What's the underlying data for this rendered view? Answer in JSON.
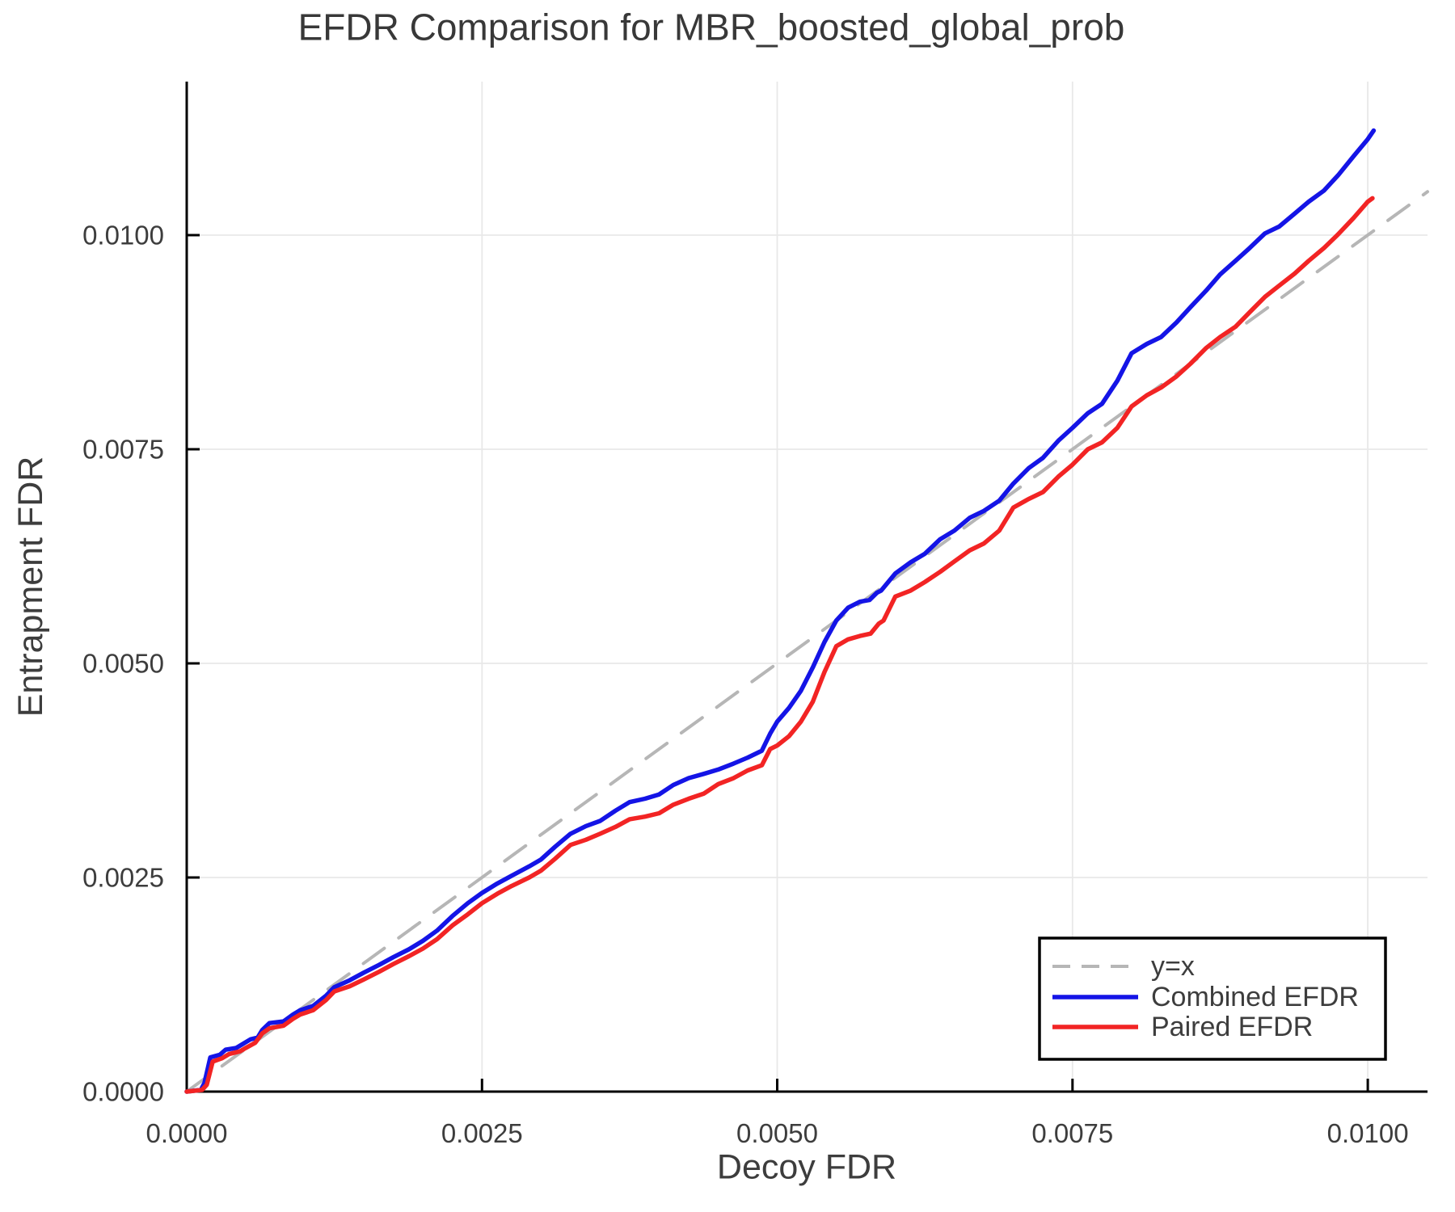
{
  "title": "EFDR Comparison for MBR_boosted_global_prob",
  "axes": {
    "xlabel": "Decoy FDR",
    "ylabel": "Entrapment FDR",
    "x_tick_labels": [
      "0.0000",
      "0.0025",
      "0.0050",
      "0.0075",
      "0.0100"
    ],
    "x_tick_values": [
      0.0,
      0.0025,
      0.005,
      0.0075,
      0.01
    ],
    "y_tick_labels": [
      "0.0000",
      "0.0025",
      "0.0050",
      "0.0075",
      "0.0100"
    ],
    "y_tick_values": [
      0.0,
      0.0025,
      0.005,
      0.0075,
      0.01
    ]
  },
  "legend": {
    "entries": [
      {
        "label": "y=x",
        "color": "#b6b6b6",
        "dash": true
      },
      {
        "label": "Combined EFDR",
        "color": "#1414e6",
        "dash": false
      },
      {
        "label": "Paired EFDR",
        "color": "#f22424",
        "dash": false
      }
    ]
  },
  "colors": {
    "grid": "#e8e8e8",
    "spine": "#000000",
    "text": "#3d3d3d",
    "background": "#ffffff",
    "yx_line": "#b6b6b6",
    "combined": "#1414e6",
    "paired": "#f22424"
  },
  "chart_data": {
    "type": "line",
    "title": "EFDR Comparison for MBR_boosted_global_prob",
    "xlabel": "Decoy FDR",
    "ylabel": "Entrapment FDR",
    "xlim": [
      0,
      0.010506
    ],
    "ylim": [
      0,
      0.011792
    ],
    "grid": true,
    "legend_position": "lower right",
    "series": [
      {
        "id": "yx",
        "name": "y=x",
        "color": "#b6b6b6",
        "style": "dashed",
        "points": [
          [
            0,
            0
          ],
          [
            0.010506,
            0.010506
          ]
        ]
      },
      {
        "id": "combined",
        "name": "Combined EFDR",
        "color": "#1414e6",
        "style": "solid",
        "points": [
          [
            0,
            0
          ],
          [
            0.00012,
            2e-05
          ],
          [
            0.00015,
            0.0001
          ],
          [
            0.0002,
            0.0004
          ],
          [
            0.00028,
            0.00043
          ],
          [
            0.00033,
            0.00049
          ],
          [
            0.00042,
            0.00051
          ],
          [
            0.00048,
            0.00056
          ],
          [
            0.00054,
            0.00061
          ],
          [
            0.0006,
            0.00063
          ],
          [
            0.00064,
            0.00072
          ],
          [
            0.0007,
            0.0008
          ],
          [
            0.00082,
            0.00082
          ],
          [
            0.0009,
            0.0009
          ],
          [
            0.00096,
            0.00095
          ],
          [
            0.00107,
            0.001
          ],
          [
            0.00118,
            0.00112
          ],
          [
            0.00125,
            0.00122
          ],
          [
            0.00138,
            0.0013
          ],
          [
            0.0015,
            0.00139
          ],
          [
            0.00163,
            0.00148
          ],
          [
            0.00175,
            0.00157
          ],
          [
            0.00188,
            0.00166
          ],
          [
            0.002,
            0.00176
          ],
          [
            0.00212,
            0.00188
          ],
          [
            0.00225,
            0.00205
          ],
          [
            0.00238,
            0.0022
          ],
          [
            0.0025,
            0.00232
          ],
          [
            0.00263,
            0.00243
          ],
          [
            0.00275,
            0.00252
          ],
          [
            0.0029,
            0.00263
          ],
          [
            0.003,
            0.00271
          ],
          [
            0.00312,
            0.00286
          ],
          [
            0.00325,
            0.00301
          ],
          [
            0.00338,
            0.0031
          ],
          [
            0.0035,
            0.00316
          ],
          [
            0.00363,
            0.00328
          ],
          [
            0.00375,
            0.00338
          ],
          [
            0.00388,
            0.00342
          ],
          [
            0.004,
            0.00347
          ],
          [
            0.00412,
            0.00358
          ],
          [
            0.00425,
            0.00366
          ],
          [
            0.00438,
            0.00371
          ],
          [
            0.0045,
            0.00376
          ],
          [
            0.00463,
            0.00383
          ],
          [
            0.00475,
            0.0039
          ],
          [
            0.00487,
            0.00398
          ],
          [
            0.00494,
            0.00418
          ],
          [
            0.005,
            0.00432
          ],
          [
            0.0051,
            0.00448
          ],
          [
            0.0052,
            0.00468
          ],
          [
            0.0053,
            0.00495
          ],
          [
            0.0054,
            0.00525
          ],
          [
            0.0055,
            0.0055
          ],
          [
            0.0056,
            0.00565
          ],
          [
            0.0057,
            0.00572
          ],
          [
            0.00588,
            0.00585
          ],
          [
            0.006,
            0.00605
          ],
          [
            0.00613,
            0.00618
          ],
          [
            0.00625,
            0.00628
          ],
          [
            0.00638,
            0.00645
          ],
          [
            0.0065,
            0.00655
          ],
          [
            0.00663,
            0.0067
          ],
          [
            0.00675,
            0.00678
          ],
          [
            0.00688,
            0.0069
          ],
          [
            0.007,
            0.0071
          ],
          [
            0.00713,
            0.00728
          ],
          [
            0.00725,
            0.0074
          ],
          [
            0.00738,
            0.0076
          ],
          [
            0.0075,
            0.00775
          ],
          [
            0.00763,
            0.00792
          ],
          [
            0.00775,
            0.00803
          ],
          [
            0.00788,
            0.0083
          ],
          [
            0.008,
            0.00862
          ],
          [
            0.00813,
            0.00873
          ],
          [
            0.00825,
            0.00881
          ],
          [
            0.00838,
            0.00898
          ],
          [
            0.0085,
            0.00916
          ],
          [
            0.00863,
            0.00935
          ],
          [
            0.00875,
            0.00954
          ],
          [
            0.00888,
            0.0097
          ],
          [
            0.009,
            0.00985
          ],
          [
            0.00913,
            0.01002
          ],
          [
            0.00925,
            0.0101
          ],
          [
            0.00938,
            0.01025
          ],
          [
            0.0095,
            0.01039
          ],
          [
            0.00963,
            0.01052
          ],
          [
            0.00975,
            0.0107
          ],
          [
            0.00988,
            0.01092
          ],
          [
            0.01,
            0.01112
          ],
          [
            0.01005,
            0.01122
          ]
        ]
      },
      {
        "id": "paired",
        "name": "Paired EFDR",
        "color": "#f22424",
        "style": "solid",
        "points": [
          [
            0,
            0
          ],
          [
            0.00013,
            2e-05
          ],
          [
            0.00017,
            8e-05
          ],
          [
            0.00022,
            0.00035
          ],
          [
            0.0003,
            0.00039
          ],
          [
            0.00036,
            0.00044
          ],
          [
            0.00045,
            0.00047
          ],
          [
            0.0005,
            0.00051
          ],
          [
            0.00058,
            0.00057
          ],
          [
            0.00064,
            0.00068
          ],
          [
            0.0007,
            0.00074
          ],
          [
            0.00082,
            0.00077
          ],
          [
            0.0009,
            0.00085
          ],
          [
            0.00096,
            0.0009
          ],
          [
            0.00107,
            0.00095
          ],
          [
            0.00118,
            0.00107
          ],
          [
            0.00125,
            0.00117
          ],
          [
            0.00138,
            0.00123
          ],
          [
            0.0015,
            0.00131
          ],
          [
            0.00163,
            0.0014
          ],
          [
            0.00175,
            0.00149
          ],
          [
            0.00188,
            0.00158
          ],
          [
            0.002,
            0.00167
          ],
          [
            0.00212,
            0.00178
          ],
          [
            0.00225,
            0.00194
          ],
          [
            0.00238,
            0.00207
          ],
          [
            0.0025,
            0.0022
          ],
          [
            0.00263,
            0.00231
          ],
          [
            0.00275,
            0.0024
          ],
          [
            0.0029,
            0.0025
          ],
          [
            0.003,
            0.00258
          ],
          [
            0.00312,
            0.00272
          ],
          [
            0.00325,
            0.00288
          ],
          [
            0.00338,
            0.00294
          ],
          [
            0.0035,
            0.00301
          ],
          [
            0.00363,
            0.00309
          ],
          [
            0.00375,
            0.00318
          ],
          [
            0.00388,
            0.00321
          ],
          [
            0.004,
            0.00325
          ],
          [
            0.00412,
            0.00335
          ],
          [
            0.00425,
            0.00342
          ],
          [
            0.00438,
            0.00348
          ],
          [
            0.0045,
            0.00359
          ],
          [
            0.00463,
            0.00366
          ],
          [
            0.00475,
            0.00375
          ],
          [
            0.00487,
            0.00381
          ],
          [
            0.00494,
            0.004
          ],
          [
            0.005,
            0.00404
          ],
          [
            0.0051,
            0.00415
          ],
          [
            0.0052,
            0.00432
          ],
          [
            0.0053,
            0.00455
          ],
          [
            0.0054,
            0.0049
          ],
          [
            0.0055,
            0.0052
          ],
          [
            0.0056,
            0.00528
          ],
          [
            0.0057,
            0.00532
          ],
          [
            0.0059,
            0.0055
          ],
          [
            0.006,
            0.00578
          ],
          [
            0.00613,
            0.00585
          ],
          [
            0.00625,
            0.00595
          ],
          [
            0.00638,
            0.00607
          ],
          [
            0.0065,
            0.00619
          ],
          [
            0.00663,
            0.00632
          ],
          [
            0.00675,
            0.0064
          ],
          [
            0.00688,
            0.00655
          ],
          [
            0.007,
            0.00682
          ],
          [
            0.00713,
            0.00692
          ],
          [
            0.00725,
            0.007
          ],
          [
            0.00738,
            0.00718
          ],
          [
            0.0075,
            0.00732
          ],
          [
            0.00763,
            0.0075
          ],
          [
            0.00775,
            0.00758
          ],
          [
            0.00788,
            0.00775
          ],
          [
            0.008,
            0.008
          ],
          [
            0.00813,
            0.00813
          ],
          [
            0.00825,
            0.00822
          ],
          [
            0.00838,
            0.00835
          ],
          [
            0.0085,
            0.0085
          ],
          [
            0.00863,
            0.00868
          ],
          [
            0.00875,
            0.00881
          ],
          [
            0.00888,
            0.00893
          ],
          [
            0.009,
            0.0091
          ],
          [
            0.00913,
            0.00928
          ],
          [
            0.00925,
            0.00941
          ],
          [
            0.00938,
            0.00955
          ],
          [
            0.0095,
            0.0097
          ],
          [
            0.00963,
            0.00985
          ],
          [
            0.00975,
            0.01001
          ],
          [
            0.00988,
            0.0102
          ],
          [
            0.01,
            0.01039
          ],
          [
            0.01004,
            0.01043
          ]
        ]
      }
    ]
  }
}
